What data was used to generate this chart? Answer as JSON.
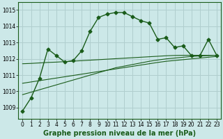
{
  "bg_color": "#cce8e8",
  "grid_color": "#b0cece",
  "line_color": "#1a5c1a",
  "x_ticks": [
    0,
    1,
    2,
    3,
    4,
    5,
    6,
    7,
    8,
    9,
    10,
    11,
    12,
    13,
    14,
    15,
    16,
    17,
    18,
    19,
    20,
    21,
    22,
    23
  ],
  "y_ticks": [
    1009,
    1010,
    1011,
    1012,
    1013,
    1014,
    1015
  ],
  "ylim": [
    1008.3,
    1015.5
  ],
  "xlim": [
    -0.5,
    23.5
  ],
  "main_line": [
    1008.8,
    1009.6,
    1010.8,
    1012.6,
    1012.2,
    1011.8,
    1011.9,
    1012.5,
    1013.7,
    1014.55,
    1014.75,
    1014.85,
    1014.85,
    1014.6,
    1014.35,
    1014.2,
    1013.2,
    1013.3,
    1012.7,
    1012.8,
    1012.2,
    1012.2,
    1013.2,
    1012.2
  ],
  "trend_line1": [
    1011.7,
    1011.72,
    1011.75,
    1011.78,
    1011.8,
    1011.83,
    1011.86,
    1011.89,
    1011.92,
    1011.95,
    1011.98,
    1012.01,
    1012.04,
    1012.07,
    1012.1,
    1012.13,
    1012.16,
    1012.19,
    1012.21,
    1012.22,
    1012.22,
    1012.22,
    1012.22,
    1012.22
  ],
  "trend_line2": [
    1010.5,
    1010.58,
    1010.66,
    1010.74,
    1010.82,
    1010.9,
    1010.98,
    1011.06,
    1011.14,
    1011.22,
    1011.3,
    1011.38,
    1011.46,
    1011.54,
    1011.62,
    1011.7,
    1011.78,
    1011.85,
    1011.9,
    1011.95,
    1012.0,
    1012.05,
    1012.1,
    1012.15
  ],
  "trend_line3": [
    1009.8,
    1009.95,
    1010.1,
    1010.25,
    1010.4,
    1010.55,
    1010.7,
    1010.85,
    1011.0,
    1011.15,
    1011.3,
    1011.45,
    1011.55,
    1011.65,
    1011.75,
    1011.85,
    1011.93,
    1012.0,
    1012.05,
    1012.1,
    1012.15,
    1012.18,
    1012.2,
    1012.22
  ],
  "xlabel": "Graphe pression niveau de la mer (hPa)",
  "xlabel_fontsize": 7,
  "tick_fontsize": 5.5,
  "marker": "D",
  "marker_size": 2.5,
  "linewidth": 1.0,
  "trend_linewidth": 0.8
}
